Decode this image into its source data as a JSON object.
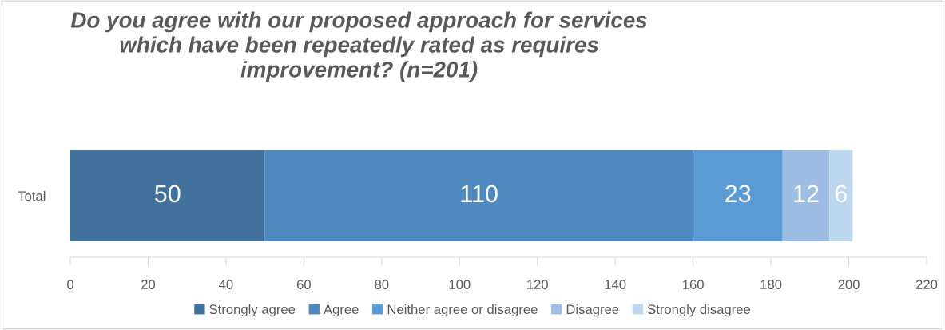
{
  "chart_data": {
    "type": "bar",
    "title": "Do you agree with our proposed approach for services\nwhich have been repeatedly rated as requires\nimprovement? (n=201)",
    "categories": [
      "Total"
    ],
    "orientation": "horizontal",
    "stacked": true,
    "series": [
      {
        "name": "Strongly agree",
        "color": "#41719c",
        "values": [
          50
        ]
      },
      {
        "name": "Agree",
        "color": "#4e89bf",
        "values": [
          110
        ]
      },
      {
        "name": "Neither agree or disagree",
        "color": "#5b9bd5",
        "values": [
          23
        ]
      },
      {
        "name": "Disagree",
        "color": "#9dbde3",
        "values": [
          12
        ]
      },
      {
        "name": "Strongly disagree",
        "color": "#bdd7ee",
        "values": [
          6
        ]
      }
    ],
    "xlim": [
      0,
      220
    ],
    "xticks": [
      0,
      20,
      40,
      60,
      80,
      100,
      120,
      140,
      160,
      180,
      200,
      220
    ],
    "data_labels": true,
    "legend": "bottom",
    "grid": false
  }
}
